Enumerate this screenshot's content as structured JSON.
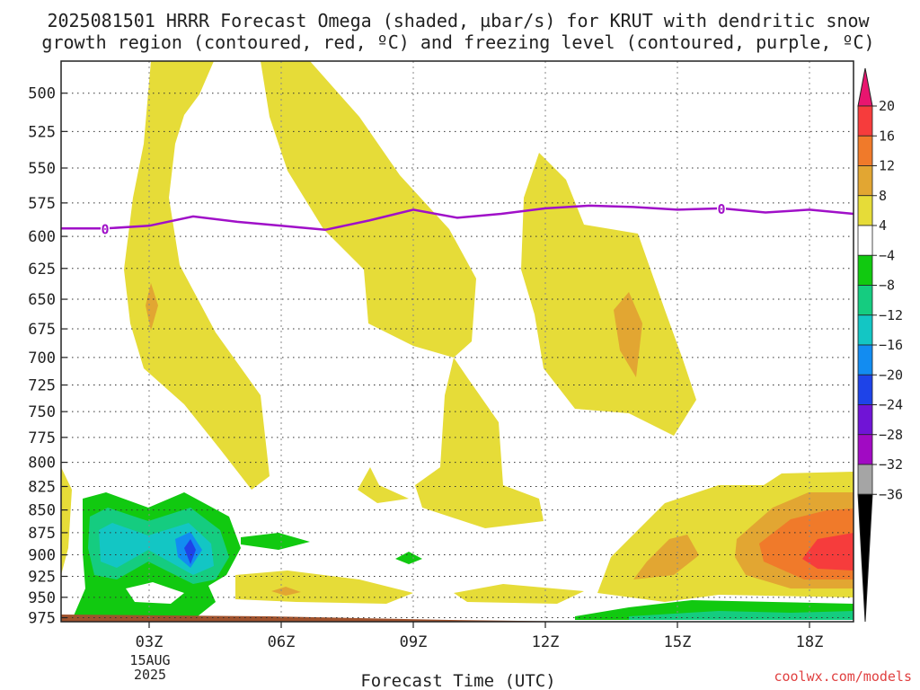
{
  "chart_data": {
    "type": "heatmap",
    "title": "2025081501 HRRR Forecast Omega (shaded, µbar/s) for KRUT with dendritic snow",
    "subtitle": "growth region (contoured, red, ºC) and freezing level (contoured, purple, ºC)",
    "xlabel": "Forecast Time (UTC)",
    "ylabel": "",
    "x_ticks": [
      "03Z",
      "06Z",
      "09Z",
      "12Z",
      "15Z",
      "18Z"
    ],
    "x_tick_hours": [
      3,
      6,
      9,
      12,
      15,
      18
    ],
    "x_date_line1": "15AUG",
    "x_date_line2": "2025",
    "xlim": [
      1,
      19
    ],
    "y_ticks": [
      500,
      525,
      550,
      575,
      600,
      625,
      650,
      675,
      700,
      725,
      750,
      775,
      800,
      825,
      850,
      875,
      900,
      925,
      950,
      975
    ],
    "y_tick_labels": [
      "500",
      "525",
      "550",
      "575",
      "600",
      "625",
      "650",
      "675",
      "700",
      "725",
      "750",
      "775",
      "800",
      "825",
      "850",
      "875",
      "900",
      "925",
      "950",
      "975"
    ],
    "ylim": [
      480,
      980
    ],
    "y_scale": "log-pressure (inverted)",
    "grid": true,
    "colorbar": {
      "labels": [
        "20",
        "16",
        "12",
        "8",
        "4",
        "−4",
        "−8",
        "−12",
        "−16",
        "−20",
        "−24",
        "−28",
        "−32",
        "−36"
      ],
      "levels": [
        20,
        16,
        12,
        8,
        4,
        -4,
        -8,
        -12,
        -16,
        -20,
        -24,
        -28,
        -32,
        -36
      ],
      "colors": [
        "#e8156f",
        "#f63c3c",
        "#f07a2a",
        "#e2a632",
        "#e6dc38",
        "#ffffff",
        "#11c910",
        "#15cc80",
        "#13c6c4",
        "#128cf1",
        "#1e43e8",
        "#7014d6",
        "#a10ac3",
        "#a5a5a5",
        "#000000"
      ]
    },
    "freezing_level": {
      "label": "0",
      "color": "#a010c8",
      "x": [
        1.0,
        2.0,
        3.0,
        4.0,
        5.0,
        6.0,
        7.0,
        8.0,
        9.0,
        10.0,
        11.0,
        12.0,
        13.0,
        14.0,
        15.0,
        16.0,
        17.0,
        18.0,
        19.0
      ],
      "y": [
        594,
        594,
        592,
        585,
        589,
        592,
        595,
        588,
        580,
        586,
        583,
        579,
        577,
        578,
        580,
        579,
        582,
        580,
        583
      ]
    },
    "ground_color": "#a0522d",
    "credit": "coolwx.com/models"
  }
}
